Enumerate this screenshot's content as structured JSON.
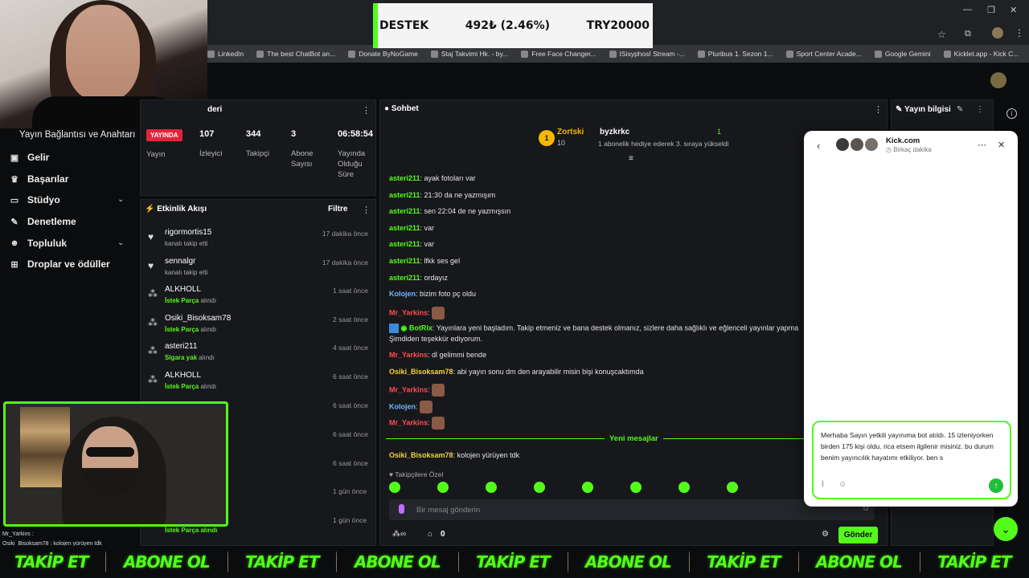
{
  "browser": {
    "bookmarks": [
      "LinkedIn",
      "The best ChatBot an...",
      "Donate ByNoGame",
      "Staj Takvimi Hk. - by...",
      "Free Face Changer...",
      "ISisyphosI Stream -...",
      "Pluribus 1. Sezon 1...",
      "Sport Center Acade...",
      "Google Gemini",
      "Kicklet.app - Kick C..."
    ]
  },
  "ticker": {
    "label": "DESTEK",
    "amount": "492₺ (2.46%)",
    "goal": "TRY20000"
  },
  "sidebar": {
    "title": "Yayın Bağlantısı ve Anahtarı",
    "items": [
      {
        "label": "Gelir",
        "icon": "money-icon"
      },
      {
        "label": "Başarılar",
        "icon": "trophy-icon"
      },
      {
        "label": "Stüdyo",
        "icon": "video-icon"
      },
      {
        "label": "Denetleme",
        "icon": "wrench-icon"
      },
      {
        "label": "Topluluk",
        "icon": "people-icon"
      },
      {
        "label": "Droplar ve ödüller",
        "icon": "gift-icon"
      }
    ]
  },
  "stats": {
    "partial_title": "deri",
    "live": "YAYINDA",
    "stream_label": "Yayın",
    "viewers": "107",
    "viewers_label": "İzleyici",
    "followers": "344",
    "followers_label": "Takipçi",
    "subs": "3",
    "subs_label": "Abone Sayısı",
    "uptime": "06:58:54",
    "uptime_label": "Yayında Olduğu Süre"
  },
  "feed": {
    "title": "Etkinlik Akışı",
    "filter": "Filtre",
    "items": [
      {
        "name": "rigormortis15",
        "pre": "kanalı takip etti",
        "hl": "",
        "post": "",
        "time": "17 dakika önce",
        "type": "heart"
      },
      {
        "name": "sennalgr",
        "pre": "kanalı takip etti",
        "hl": "",
        "post": "",
        "time": "17 dakika önce",
        "type": "heart"
      },
      {
        "name": "ALKHOLL",
        "pre": "",
        "hl": "İstek Parça",
        "post": " alındı",
        "time": "1 saat önce",
        "type": "dots"
      },
      {
        "name": "Osiki_Bisoksam78",
        "pre": "",
        "hl": "İstek Parça",
        "post": " alındı",
        "time": "2 saat önce",
        "type": "dots"
      },
      {
        "name": "asteri211",
        "pre": "",
        "hl": "Sigara yak",
        "post": " alındı",
        "time": "4 saat önce",
        "type": "dots"
      },
      {
        "name": "ALKHOLL",
        "pre": "",
        "hl": "İstek Parça",
        "post": " alındı",
        "time": "6 saat önce",
        "type": "dots"
      }
    ],
    "hidden_times": [
      "6 saat önce",
      "6 saat önce",
      "6 saat önce",
      "1 gün önce",
      "1 gün önce"
    ],
    "last_partial": "İstek Parça alındı"
  },
  "chat": {
    "title": "Sohbet",
    "pinned": {
      "user": "Zortski",
      "count": "10",
      "user2": "byzkrkc",
      "num": "1",
      "note": "1 abonelik hediye ederek 3. sıraya yükseldi"
    },
    "messages": [
      {
        "user": "asteri211",
        "text": ": ayak fotoları var",
        "cls": "u-g"
      },
      {
        "user": "asteri211",
        "text": ": 21:30 da ne yazmışım",
        "cls": "u-g"
      },
      {
        "user": "asteri211",
        "text": ": sen 22:04 de ne yazmışsın",
        "cls": "u-g"
      },
      {
        "user": "asteri211",
        "text": ": var",
        "cls": "u-g"
      },
      {
        "user": "asteri211",
        "text": ": var",
        "cls": "u-g"
      },
      {
        "user": "asteri211",
        "text": ": lfkk ses gel",
        "cls": "u-g"
      },
      {
        "user": "asteri211",
        "text": ": ordayız",
        "cls": "u-g"
      },
      {
        "user": "Kolojen",
        "text": ": bizim foto pç oldu",
        "cls": "u-b"
      },
      {
        "user": "Mr_Yarkins",
        "text": ": ",
        "cls": "u-r",
        "emote": true
      }
    ],
    "botrix_user": "BotRix",
    "botrix_line1": ": Yayınlara yeni başladım. Takip etmeniz ve bana destek olmanız, sizlere daha sağlıklı ve eğlenceli yayınlar yapma",
    "botrix_line2": "Şimdiden teşekkür ediyorum.",
    "messages2": [
      {
        "user": "Mr_Yarkins",
        "text": ": dl gelimmi bende",
        "cls": "u-r"
      },
      {
        "user": "Osiki_Bisoksam78",
        "text": ": abi yayın sonu dm den arayabilir misin bişi konuşcaktımda",
        "cls": "u-y"
      },
      {
        "user": "Mr_Yarkins",
        "text": ": ",
        "cls": "u-r",
        "emote": true
      },
      {
        "user": "Kolojen",
        "text": ": ",
        "cls": "u-b",
        "emote": true
      },
      {
        "user": "Mr_Yarkins",
        "text": ": ",
        "cls": "u-r",
        "emote": true
      }
    ],
    "new_messages": "Yeni mesajlar",
    "last": {
      "user": "Osiki_Bisoksam78",
      "text": ": kolojen yürüyen tdk"
    },
    "followers_only": "Takipçilere Özel",
    "input_placeholder": "Bir mesaj gönderin",
    "counter": "0",
    "send": "Gönder"
  },
  "right_panel": {
    "title": "Yayın bilgisi"
  },
  "popup": {
    "site": "Kick.com",
    "time": "Birkaç dakika",
    "draft": "Merhaba Sayın yetkili yayınıma  bot atıldı. 15 izleniyorken birden 175 kişi oldu. rica etsem ilgilenir misiniz. bu durum benim yayıncılık hayatımı etkiliyor. ben s"
  },
  "overlay_chat": {
    "l1": "Mr_Yarkins :",
    "l2": "Osiki_Bisoksam78 : kolojen yürüyen tdk"
  },
  "banner": {
    "follow": "TAKİP ET",
    "sub": "ABONE OL"
  },
  "colors": {
    "accent": "#53fc18",
    "live": "#e5233a"
  }
}
